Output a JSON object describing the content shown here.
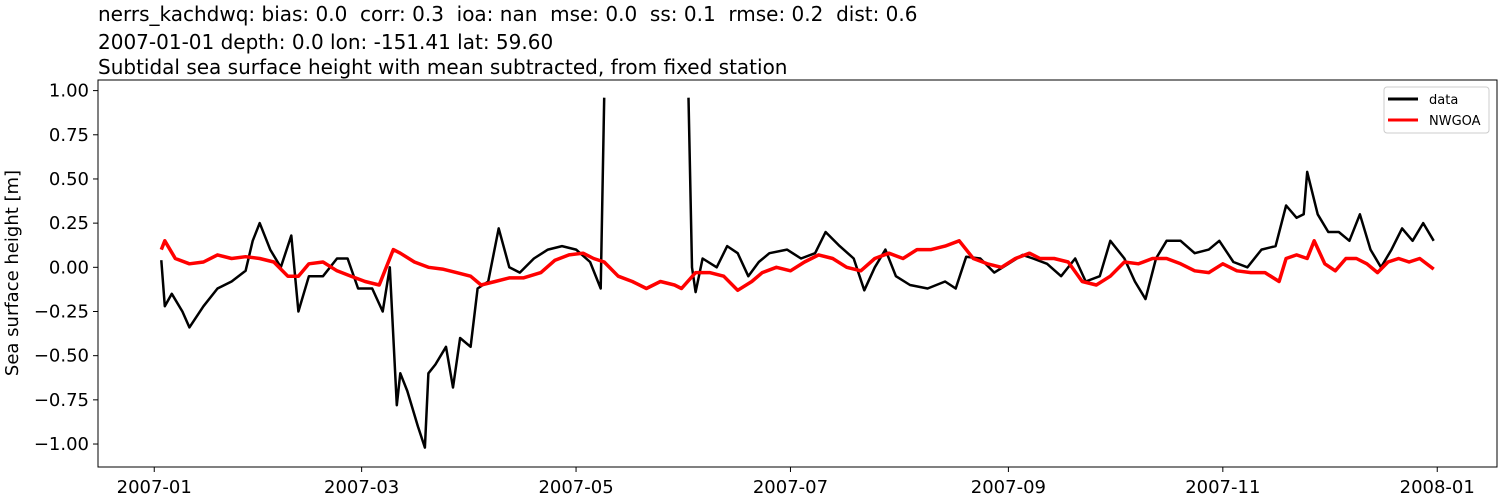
{
  "titles": [
    "nerrs_kachdwq: bias: 0.0  corr: 0.3  ioa: nan  mse: 0.0  ss: 0.1  rmse: 0.2  dist: 0.6",
    "2007-01-01 depth: 0.0 lon: -151.41 lat: 59.60",
    "Subtidal sea surface height with mean subtracted, from fixed station"
  ],
  "chart_data": {
    "type": "line",
    "ylabel": "Sea surface height [m]",
    "xlabel": "",
    "xlim": [
      "2006-12-16",
      "2008-01-18"
    ],
    "ylim": [
      -1.13,
      1.06
    ],
    "grid": false,
    "legend_placement": "top-right",
    "xticks": [
      {
        "date": "2007-01-01",
        "label": "2007-01"
      },
      {
        "date": "2007-03-01",
        "label": "2007-03"
      },
      {
        "date": "2007-05-01",
        "label": "2007-05"
      },
      {
        "date": "2007-07-01",
        "label": "2007-07"
      },
      {
        "date": "2007-09-01",
        "label": "2007-09"
      },
      {
        "date": "2007-11-01",
        "label": "2007-11"
      },
      {
        "date": "2008-01-01",
        "label": "2008-01"
      }
    ],
    "yticks": [
      {
        "value": 1.0,
        "label": "1.00"
      },
      {
        "value": 0.75,
        "label": "0.75"
      },
      {
        "value": 0.5,
        "label": "0.50"
      },
      {
        "value": 0.25,
        "label": "0.25"
      },
      {
        "value": 0.0,
        "label": "0.00"
      },
      {
        "value": -0.25,
        "label": "−0.25"
      },
      {
        "value": -0.5,
        "label": "−0.50"
      },
      {
        "value": -0.75,
        "label": "−0.75"
      },
      {
        "value": -1.0,
        "label": "−1.00"
      }
    ],
    "series": [
      {
        "name": "data",
        "color": "#000000",
        "points": [
          [
            "2007-01-03",
            0.04
          ],
          [
            "2007-01-04",
            -0.22
          ],
          [
            "2007-01-06",
            -0.15
          ],
          [
            "2007-01-09",
            -0.25
          ],
          [
            "2007-01-11",
            -0.34
          ],
          [
            "2007-01-15",
            -0.22
          ],
          [
            "2007-01-19",
            -0.12
          ],
          [
            "2007-01-23",
            -0.08
          ],
          [
            "2007-01-27",
            -0.02
          ],
          [
            "2007-01-29",
            0.15
          ],
          [
            "2007-01-31",
            0.25
          ],
          [
            "2007-02-03",
            0.1
          ],
          [
            "2007-02-06",
            0.0
          ],
          [
            "2007-02-09",
            0.18
          ],
          [
            "2007-02-11",
            -0.25
          ],
          [
            "2007-02-14",
            -0.05
          ],
          [
            "2007-02-18",
            -0.05
          ],
          [
            "2007-02-22",
            0.05
          ],
          [
            "2007-02-25",
            0.05
          ],
          [
            "2007-02-28",
            -0.12
          ],
          [
            "2007-03-04",
            -0.12
          ],
          [
            "2007-03-07",
            -0.25
          ],
          [
            "2007-03-09",
            0.0
          ],
          [
            "2007-03-11",
            -0.78
          ],
          [
            "2007-03-12",
            -0.6
          ],
          [
            "2007-03-14",
            -0.7
          ],
          [
            "2007-03-17",
            -0.9
          ],
          [
            "2007-03-19",
            -1.02
          ],
          [
            "2007-03-20",
            -0.6
          ],
          [
            "2007-03-22",
            -0.55
          ],
          [
            "2007-03-25",
            -0.45
          ],
          [
            "2007-03-27",
            -0.68
          ],
          [
            "2007-03-29",
            -0.4
          ],
          [
            "2007-04-01",
            -0.45
          ],
          [
            "2007-04-03",
            -0.12
          ],
          [
            "2007-04-06",
            -0.08
          ],
          [
            "2007-04-09",
            0.22
          ],
          [
            "2007-04-12",
            0.0
          ],
          [
            "2007-04-15",
            -0.03
          ],
          [
            "2007-04-19",
            0.05
          ],
          [
            "2007-04-23",
            0.1
          ],
          [
            "2007-04-27",
            0.12
          ],
          [
            "2007-05-01",
            0.1
          ],
          [
            "2007-05-05",
            0.03
          ],
          [
            "2007-05-08",
            -0.12
          ],
          [
            "2007-05-09",
            0.96
          ],
          null,
          [
            "2007-06-02",
            0.96
          ],
          [
            "2007-06-03",
            0.0
          ],
          [
            "2007-06-04",
            -0.14
          ],
          [
            "2007-06-06",
            0.05
          ],
          [
            "2007-06-10",
            0.0
          ],
          [
            "2007-06-13",
            0.12
          ],
          [
            "2007-06-16",
            0.08
          ],
          [
            "2007-06-19",
            -0.05
          ],
          [
            "2007-06-22",
            0.03
          ],
          [
            "2007-06-25",
            0.08
          ],
          [
            "2007-06-30",
            0.1
          ],
          [
            "2007-07-04",
            0.05
          ],
          [
            "2007-07-08",
            0.08
          ],
          [
            "2007-07-11",
            0.2
          ],
          [
            "2007-07-15",
            0.12
          ],
          [
            "2007-07-19",
            0.05
          ],
          [
            "2007-07-22",
            -0.13
          ],
          [
            "2007-07-25",
            0.0
          ],
          [
            "2007-07-28",
            0.1
          ],
          [
            "2007-07-31",
            -0.05
          ],
          [
            "2007-08-04",
            -0.1
          ],
          [
            "2007-08-09",
            -0.12
          ],
          [
            "2007-08-14",
            -0.08
          ],
          [
            "2007-08-17",
            -0.12
          ],
          [
            "2007-08-20",
            0.06
          ],
          [
            "2007-08-24",
            0.05
          ],
          [
            "2007-08-28",
            -0.03
          ],
          [
            "2007-09-01",
            0.02
          ],
          [
            "2007-09-05",
            0.07
          ],
          [
            "2007-09-08",
            0.05
          ],
          [
            "2007-09-12",
            0.02
          ],
          [
            "2007-09-16",
            -0.05
          ],
          [
            "2007-09-20",
            0.05
          ],
          [
            "2007-09-23",
            -0.08
          ],
          [
            "2007-09-27",
            -0.05
          ],
          [
            "2007-09-30",
            0.15
          ],
          [
            "2007-10-04",
            0.05
          ],
          [
            "2007-10-07",
            -0.08
          ],
          [
            "2007-10-10",
            -0.18
          ],
          [
            "2007-10-13",
            0.05
          ],
          [
            "2007-10-16",
            0.15
          ],
          [
            "2007-10-20",
            0.15
          ],
          [
            "2007-10-24",
            0.08
          ],
          [
            "2007-10-28",
            0.1
          ],
          [
            "2007-10-31",
            0.15
          ],
          [
            "2007-11-04",
            0.03
          ],
          [
            "2007-11-08",
            0.0
          ],
          [
            "2007-11-12",
            0.1
          ],
          [
            "2007-11-16",
            0.12
          ],
          [
            "2007-11-19",
            0.35
          ],
          [
            "2007-11-22",
            0.28
          ],
          [
            "2007-11-24",
            0.3
          ],
          [
            "2007-11-25",
            0.54
          ],
          [
            "2007-11-28",
            0.3
          ],
          [
            "2007-12-01",
            0.2
          ],
          [
            "2007-12-04",
            0.2
          ],
          [
            "2007-12-07",
            0.15
          ],
          [
            "2007-12-10",
            0.3
          ],
          [
            "2007-12-13",
            0.1
          ],
          [
            "2007-12-16",
            0.0
          ],
          [
            "2007-12-19",
            0.1
          ],
          [
            "2007-12-22",
            0.22
          ],
          [
            "2007-12-25",
            0.15
          ],
          [
            "2007-12-28",
            0.25
          ],
          [
            "2007-12-31",
            0.15
          ]
        ]
      },
      {
        "name": "NWGOA",
        "color": "#ff0000",
        "points": [
          [
            "2007-01-03",
            0.1
          ],
          [
            "2007-01-04",
            0.15
          ],
          [
            "2007-01-07",
            0.05
          ],
          [
            "2007-01-11",
            0.02
          ],
          [
            "2007-01-15",
            0.03
          ],
          [
            "2007-01-19",
            0.07
          ],
          [
            "2007-01-23",
            0.05
          ],
          [
            "2007-01-27",
            0.06
          ],
          [
            "2007-01-31",
            0.05
          ],
          [
            "2007-02-04",
            0.03
          ],
          [
            "2007-02-08",
            -0.05
          ],
          [
            "2007-02-11",
            -0.05
          ],
          [
            "2007-02-14",
            0.02
          ],
          [
            "2007-02-18",
            0.03
          ],
          [
            "2007-02-22",
            -0.02
          ],
          [
            "2007-02-26",
            -0.05
          ],
          [
            "2007-03-02",
            -0.08
          ],
          [
            "2007-03-06",
            -0.1
          ],
          [
            "2007-03-10",
            0.1
          ],
          [
            "2007-03-12",
            0.08
          ],
          [
            "2007-03-16",
            0.03
          ],
          [
            "2007-03-20",
            0.0
          ],
          [
            "2007-03-24",
            -0.01
          ],
          [
            "2007-03-28",
            -0.03
          ],
          [
            "2007-04-01",
            -0.05
          ],
          [
            "2007-04-04",
            -0.1
          ],
          [
            "2007-04-08",
            -0.08
          ],
          [
            "2007-04-12",
            -0.06
          ],
          [
            "2007-04-16",
            -0.06
          ],
          [
            "2007-04-21",
            -0.03
          ],
          [
            "2007-04-25",
            0.04
          ],
          [
            "2007-04-29",
            0.07
          ],
          [
            "2007-05-03",
            0.08
          ],
          [
            "2007-05-06",
            0.05
          ],
          [
            "2007-05-09",
            0.03
          ],
          [
            "2007-05-13",
            -0.05
          ],
          [
            "2007-05-17",
            -0.08
          ],
          [
            "2007-05-21",
            -0.12
          ],
          [
            "2007-05-25",
            -0.08
          ],
          [
            "2007-05-29",
            -0.1
          ],
          [
            "2007-05-31",
            -0.12
          ],
          [
            "2007-06-04",
            -0.03
          ],
          [
            "2007-06-08",
            -0.03
          ],
          [
            "2007-06-12",
            -0.05
          ],
          [
            "2007-06-16",
            -0.13
          ],
          [
            "2007-06-20",
            -0.08
          ],
          [
            "2007-06-23",
            -0.03
          ],
          [
            "2007-06-27",
            0.0
          ],
          [
            "2007-07-01",
            -0.02
          ],
          [
            "2007-07-05",
            0.03
          ],
          [
            "2007-07-09",
            0.07
          ],
          [
            "2007-07-13",
            0.05
          ],
          [
            "2007-07-17",
            0.0
          ],
          [
            "2007-07-21",
            -0.02
          ],
          [
            "2007-07-25",
            0.05
          ],
          [
            "2007-07-29",
            0.08
          ],
          [
            "2007-08-02",
            0.05
          ],
          [
            "2007-08-06",
            0.1
          ],
          [
            "2007-08-10",
            0.1
          ],
          [
            "2007-08-14",
            0.12
          ],
          [
            "2007-08-18",
            0.15
          ],
          [
            "2007-08-22",
            0.05
          ],
          [
            "2007-08-26",
            0.02
          ],
          [
            "2007-08-30",
            0.0
          ],
          [
            "2007-09-03",
            0.05
          ],
          [
            "2007-09-07",
            0.08
          ],
          [
            "2007-09-10",
            0.05
          ],
          [
            "2007-09-14",
            0.05
          ],
          [
            "2007-09-18",
            0.03
          ],
          [
            "2007-09-22",
            -0.08
          ],
          [
            "2007-09-26",
            -0.1
          ],
          [
            "2007-09-30",
            -0.05
          ],
          [
            "2007-10-04",
            0.03
          ],
          [
            "2007-10-08",
            0.02
          ],
          [
            "2007-10-12",
            0.05
          ],
          [
            "2007-10-16",
            0.05
          ],
          [
            "2007-10-20",
            0.02
          ],
          [
            "2007-10-24",
            -0.02
          ],
          [
            "2007-10-28",
            -0.03
          ],
          [
            "2007-11-01",
            0.02
          ],
          [
            "2007-11-05",
            -0.02
          ],
          [
            "2007-11-09",
            -0.03
          ],
          [
            "2007-11-13",
            -0.03
          ],
          [
            "2007-11-17",
            -0.08
          ],
          [
            "2007-11-19",
            0.05
          ],
          [
            "2007-11-22",
            0.07
          ],
          [
            "2007-11-25",
            0.05
          ],
          [
            "2007-11-27",
            0.15
          ],
          [
            "2007-11-30",
            0.02
          ],
          [
            "2007-12-03",
            -0.02
          ],
          [
            "2007-12-06",
            0.05
          ],
          [
            "2007-12-09",
            0.05
          ],
          [
            "2007-12-12",
            0.02
          ],
          [
            "2007-12-15",
            -0.03
          ],
          [
            "2007-12-18",
            0.03
          ],
          [
            "2007-12-21",
            0.05
          ],
          [
            "2007-12-24",
            0.03
          ],
          [
            "2007-12-27",
            0.05
          ],
          [
            "2007-12-31",
            -0.01
          ]
        ]
      }
    ]
  }
}
